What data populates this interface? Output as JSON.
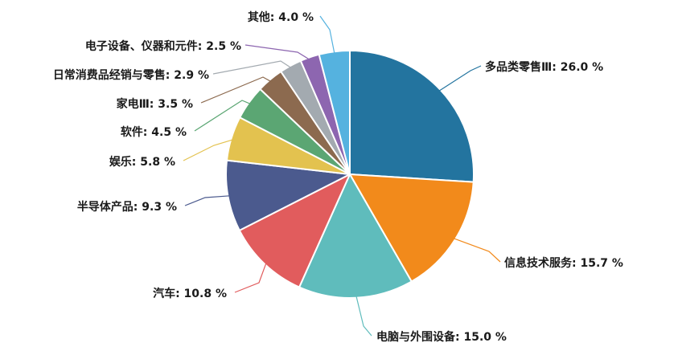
{
  "chart_data": {
    "type": "pie",
    "title": "",
    "slices": [
      {
        "name": "多品类零售Ⅲ",
        "value": 26.0,
        "label": "多品类零售Ⅲ: 26.0 %",
        "color": "#23749f"
      },
      {
        "name": "信息技术服务",
        "value": 15.7,
        "label": "信息技术服务: 15.7 %",
        "color": "#f28a1b"
      },
      {
        "name": "电脑与外围设备",
        "value": 15.0,
        "label": "电脑与外围设备: 15.0 %",
        "color": "#5fbcbc"
      },
      {
        "name": "汽车",
        "value": 10.8,
        "label": "汽车: 10.8 %",
        "color": "#e15c5d"
      },
      {
        "name": "半导体产品",
        "value": 9.3,
        "label": "半导体产品: 9.3 %",
        "color": "#4b5a8e"
      },
      {
        "name": "娱乐",
        "value": 5.8,
        "label": "娱乐: 5.8 %",
        "color": "#e3c24f"
      },
      {
        "name": "软件",
        "value": 4.5,
        "label": "软件: 4.5 %",
        "color": "#5ba673"
      },
      {
        "name": "家电Ⅲ",
        "value": 3.5,
        "label": "家电Ⅲ: 3.5 %",
        "color": "#8c6a4f"
      },
      {
        "name": "日常消费品经销与零售",
        "value": 2.9,
        "label": "日常消费品经销与零售: 2.9 %",
        "color": "#a3aab0"
      },
      {
        "name": "电子设备、仪器和元件",
        "value": 2.5,
        "label": "电子设备、仪器和元件: 2.5 %",
        "color": "#8d66b0"
      },
      {
        "name": "其他",
        "value": 4.0,
        "label": "其他: 4.0 %",
        "color": "#55b2df"
      }
    ]
  }
}
